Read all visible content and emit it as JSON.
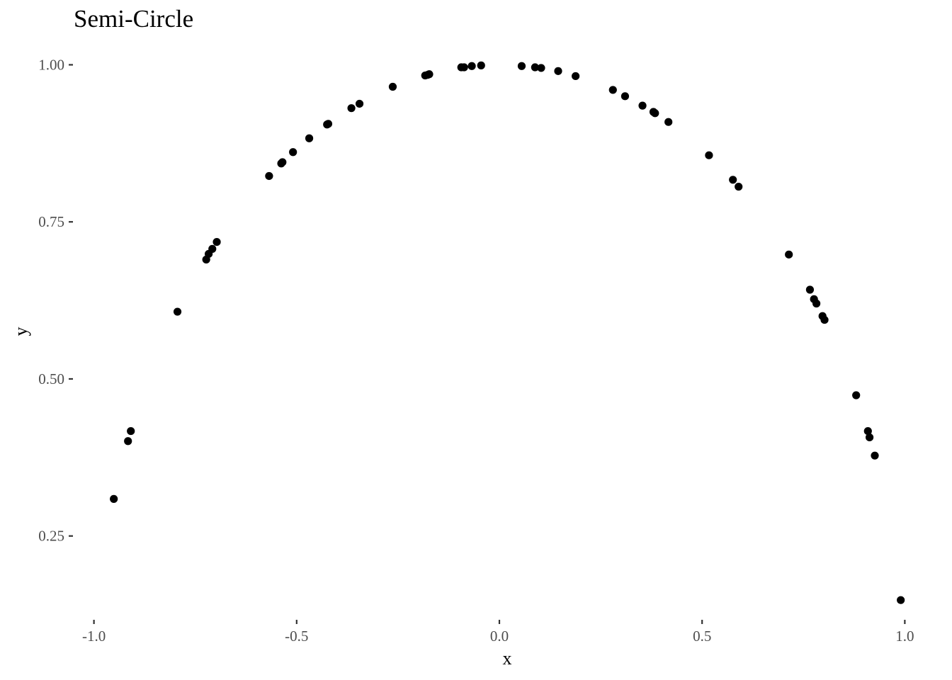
{
  "chart_data": {
    "type": "scatter",
    "title": "Semi-Circle",
    "xlabel": "x",
    "ylabel": "y",
    "xlim": [
      -1.05,
      1.05
    ],
    "ylim": [
      0.12,
      1.04
    ],
    "grid": false,
    "legend": "none",
    "x_ticks": [
      -1.0,
      -0.5,
      0.0,
      0.5,
      1.0
    ],
    "x_tick_labels": [
      "-1.0",
      "-0.5",
      "0.0",
      "0.5",
      "1.0"
    ],
    "y_ticks": [
      0.25,
      0.5,
      0.75,
      1.0
    ],
    "y_tick_labels": [
      "0.25",
      "0.50",
      "0.75",
      "1.00"
    ],
    "point_color": "#000000",
    "tick_color": "#333333",
    "label_color": "#4d4d4d",
    "points": [
      {
        "x": -0.951,
        "y": 0.309
      },
      {
        "x": -0.916,
        "y": 0.401
      },
      {
        "x": -0.909,
        "y": 0.417
      },
      {
        "x": -0.794,
        "y": 0.607
      },
      {
        "x": -0.723,
        "y": 0.69
      },
      {
        "x": -0.717,
        "y": 0.699
      },
      {
        "x": -0.708,
        "y": 0.707
      },
      {
        "x": -0.697,
        "y": 0.718
      },
      {
        "x": -0.568,
        "y": 0.823
      },
      {
        "x": -0.538,
        "y": 0.843
      },
      {
        "x": -0.535,
        "y": 0.845
      },
      {
        "x": -0.509,
        "y": 0.861
      },
      {
        "x": -0.469,
        "y": 0.883
      },
      {
        "x": -0.425,
        "y": 0.905
      },
      {
        "x": -0.422,
        "y": 0.906
      },
      {
        "x": -0.365,
        "y": 0.931
      },
      {
        "x": -0.345,
        "y": 0.938
      },
      {
        "x": -0.263,
        "y": 0.965
      },
      {
        "x": -0.183,
        "y": 0.983
      },
      {
        "x": -0.177,
        "y": 0.984
      },
      {
        "x": -0.173,
        "y": 0.985
      },
      {
        "x": -0.094,
        "y": 0.996
      },
      {
        "x": -0.087,
        "y": 0.996
      },
      {
        "x": -0.068,
        "y": 0.998
      },
      {
        "x": -0.045,
        "y": 0.999
      },
      {
        "x": 0.055,
        "y": 0.998
      },
      {
        "x": 0.088,
        "y": 0.996
      },
      {
        "x": 0.103,
        "y": 0.995
      },
      {
        "x": 0.145,
        "y": 0.99
      },
      {
        "x": 0.188,
        "y": 0.982
      },
      {
        "x": 0.28,
        "y": 0.96
      },
      {
        "x": 0.31,
        "y": 0.95
      },
      {
        "x": 0.353,
        "y": 0.935
      },
      {
        "x": 0.38,
        "y": 0.925
      },
      {
        "x": 0.384,
        "y": 0.923
      },
      {
        "x": 0.417,
        "y": 0.909
      },
      {
        "x": 0.517,
        "y": 0.856
      },
      {
        "x": 0.576,
        "y": 0.817
      },
      {
        "x": 0.59,
        "y": 0.806
      },
      {
        "x": 0.714,
        "y": 0.698
      },
      {
        "x": 0.766,
        "y": 0.642
      },
      {
        "x": 0.776,
        "y": 0.627
      },
      {
        "x": 0.782,
        "y": 0.62
      },
      {
        "x": 0.797,
        "y": 0.6
      },
      {
        "x": 0.802,
        "y": 0.594
      },
      {
        "x": 0.88,
        "y": 0.474
      },
      {
        "x": 0.909,
        "y": 0.417
      },
      {
        "x": 0.913,
        "y": 0.407
      },
      {
        "x": 0.926,
        "y": 0.378
      },
      {
        "x": 0.99,
        "y": 0.148
      }
    ]
  }
}
